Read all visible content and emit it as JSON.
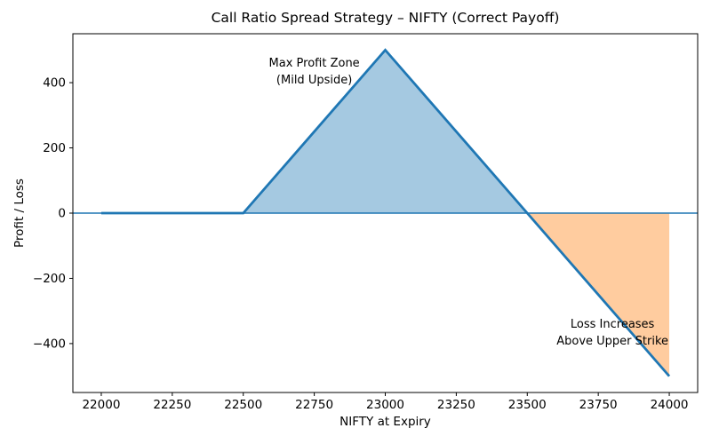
{
  "chart_data": {
    "type": "line",
    "title": "Call Ratio Spread Strategy – NIFTY (Correct Payoff)",
    "xlabel": "NIFTY at Expiry",
    "ylabel": "Profit / Loss",
    "xlim": [
      21900,
      24100
    ],
    "ylim": [
      -550,
      550
    ],
    "grid": false,
    "legend": "none",
    "background": "#ffffff",
    "spine_color": "#000000",
    "x_ticks": [
      {
        "v": 22000,
        "label": "22000"
      },
      {
        "v": 22250,
        "label": "22250"
      },
      {
        "v": 22500,
        "label": "22500"
      },
      {
        "v": 22750,
        "label": "22750"
      },
      {
        "v": 23000,
        "label": "23000"
      },
      {
        "v": 23250,
        "label": "23250"
      },
      {
        "v": 23500,
        "label": "23500"
      },
      {
        "v": 23750,
        "label": "23750"
      },
      {
        "v": 24000,
        "label": "24000"
      }
    ],
    "y_ticks": [
      {
        "v": -400,
        "label": "−400"
      },
      {
        "v": -200,
        "label": "−200"
      },
      {
        "v": 0,
        "label": "0"
      },
      {
        "v": 200,
        "label": "200"
      },
      {
        "v": 400,
        "label": "400"
      }
    ],
    "series": [
      {
        "name": "payoff-line",
        "color": "#1f77b4",
        "linewidth": 2.8,
        "x": [
          22000,
          22250,
          22500,
          22750,
          23000,
          23250,
          23500,
          23750,
          24000
        ],
        "y": [
          0,
          0,
          0,
          250,
          500,
          250,
          0,
          -250,
          -500
        ]
      }
    ],
    "zero_line": {
      "y": 0,
      "color": "#1f77b4",
      "linewidth": 1.6
    },
    "fills": [
      {
        "name": "max-profit-zone",
        "color": "#1f77b4",
        "opacity": 0.4,
        "points": [
          [
            22500,
            0
          ],
          [
            23000,
            500
          ],
          [
            23500,
            0
          ]
        ]
      },
      {
        "name": "loss-zone",
        "color": "#ff7f0e",
        "opacity": 0.4,
        "points": [
          [
            23500,
            0
          ],
          [
            24000,
            -500
          ],
          [
            24000,
            0
          ]
        ]
      }
    ],
    "annotations": [
      {
        "name": "max-profit-annotation",
        "x": 22750,
        "y": 430,
        "lines": [
          "Max Profit Zone",
          "(Mild Upside)"
        ]
      },
      {
        "name": "loss-annotation",
        "x": 23800,
        "y": -370,
        "lines": [
          "Loss Increases",
          "Above Upper Strike"
        ]
      }
    ]
  }
}
